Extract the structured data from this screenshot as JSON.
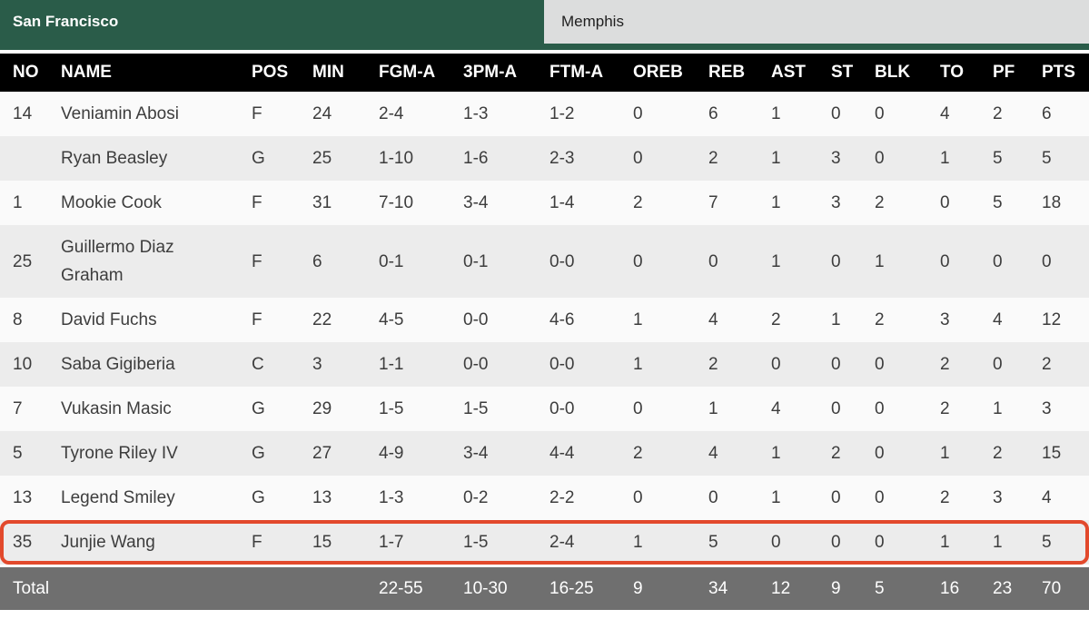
{
  "tabs": [
    {
      "label": "San Francisco",
      "active": true
    },
    {
      "label": "Memphis",
      "active": false
    }
  ],
  "table": {
    "columns": [
      "NO",
      "NAME",
      "POS",
      "MIN",
      "FGM-A",
      "3PM-A",
      "FTM-A",
      "OREB",
      "REB",
      "AST",
      "ST",
      "BLK",
      "TO",
      "PF",
      "PTS"
    ],
    "column_keys": [
      "no",
      "name",
      "pos",
      "min",
      "fgm-a",
      "3pm-a",
      "ftm-a",
      "oreb",
      "reb",
      "ast",
      "st",
      "blk",
      "to",
      "pf",
      "pts"
    ],
    "rows": [
      {
        "cells": [
          "14",
          "Veniamin Abosi",
          "F",
          "24",
          "2-4",
          "1-3",
          "1-2",
          "0",
          "6",
          "1",
          "0",
          "0",
          "4",
          "2",
          "6"
        ]
      },
      {
        "cells": [
          "",
          "Ryan Beasley",
          "G",
          "25",
          "1-10",
          "1-6",
          "2-3",
          "0",
          "2",
          "1",
          "3",
          "0",
          "1",
          "5",
          "5"
        ]
      },
      {
        "cells": [
          "1",
          "Mookie Cook",
          "F",
          "31",
          "7-10",
          "3-4",
          "1-4",
          "2",
          "7",
          "1",
          "3",
          "2",
          "0",
          "5",
          "18"
        ]
      },
      {
        "cells": [
          "25",
          "Guillermo Diaz Graham",
          "F",
          "6",
          "0-1",
          "0-1",
          "0-0",
          "0",
          "0",
          "1",
          "0",
          "1",
          "0",
          "0",
          "0"
        ]
      },
      {
        "cells": [
          "8",
          "David Fuchs",
          "F",
          "22",
          "4-5",
          "0-0",
          "4-6",
          "1",
          "4",
          "2",
          "1",
          "2",
          "3",
          "4",
          "12"
        ]
      },
      {
        "cells": [
          "10",
          "Saba Gigiberia",
          "C",
          "3",
          "1-1",
          "0-0",
          "0-0",
          "1",
          "2",
          "0",
          "0",
          "0",
          "2",
          "0",
          "2"
        ]
      },
      {
        "cells": [
          "7",
          "Vukasin Masic",
          "G",
          "29",
          "1-5",
          "1-5",
          "0-0",
          "0",
          "1",
          "4",
          "0",
          "0",
          "2",
          "1",
          "3"
        ]
      },
      {
        "cells": [
          "5",
          "Tyrone Riley IV",
          "G",
          "27",
          "4-9",
          "3-4",
          "4-4",
          "2",
          "4",
          "1",
          "2",
          "0",
          "1",
          "2",
          "15"
        ]
      },
      {
        "cells": [
          "13",
          "Legend Smiley",
          "G",
          "13",
          "1-3",
          "0-2",
          "2-2",
          "0",
          "0",
          "1",
          "0",
          "0",
          "2",
          "3",
          "4"
        ]
      },
      {
        "cells": [
          "35",
          "Junjie Wang",
          "F",
          "15",
          "1-7",
          "1-5",
          "2-4",
          "1",
          "5",
          "0",
          "0",
          "0",
          "1",
          "1",
          "5"
        ]
      }
    ],
    "highlighted_index": 9,
    "total": {
      "cells": [
        "Total",
        "",
        "",
        "",
        "22-55",
        "10-30",
        "16-25",
        "9",
        "34",
        "12",
        "9",
        "5",
        "16",
        "23",
        "70"
      ]
    }
  },
  "colors": {
    "active_tab_green": "#2a5c49",
    "inactive_tab_gray": "#dcdddd",
    "header_black": "#000000",
    "row_stripe_gray": "#ececec",
    "total_row_gray": "#6f6f6f",
    "highlight_border_red": "#e2492c"
  }
}
